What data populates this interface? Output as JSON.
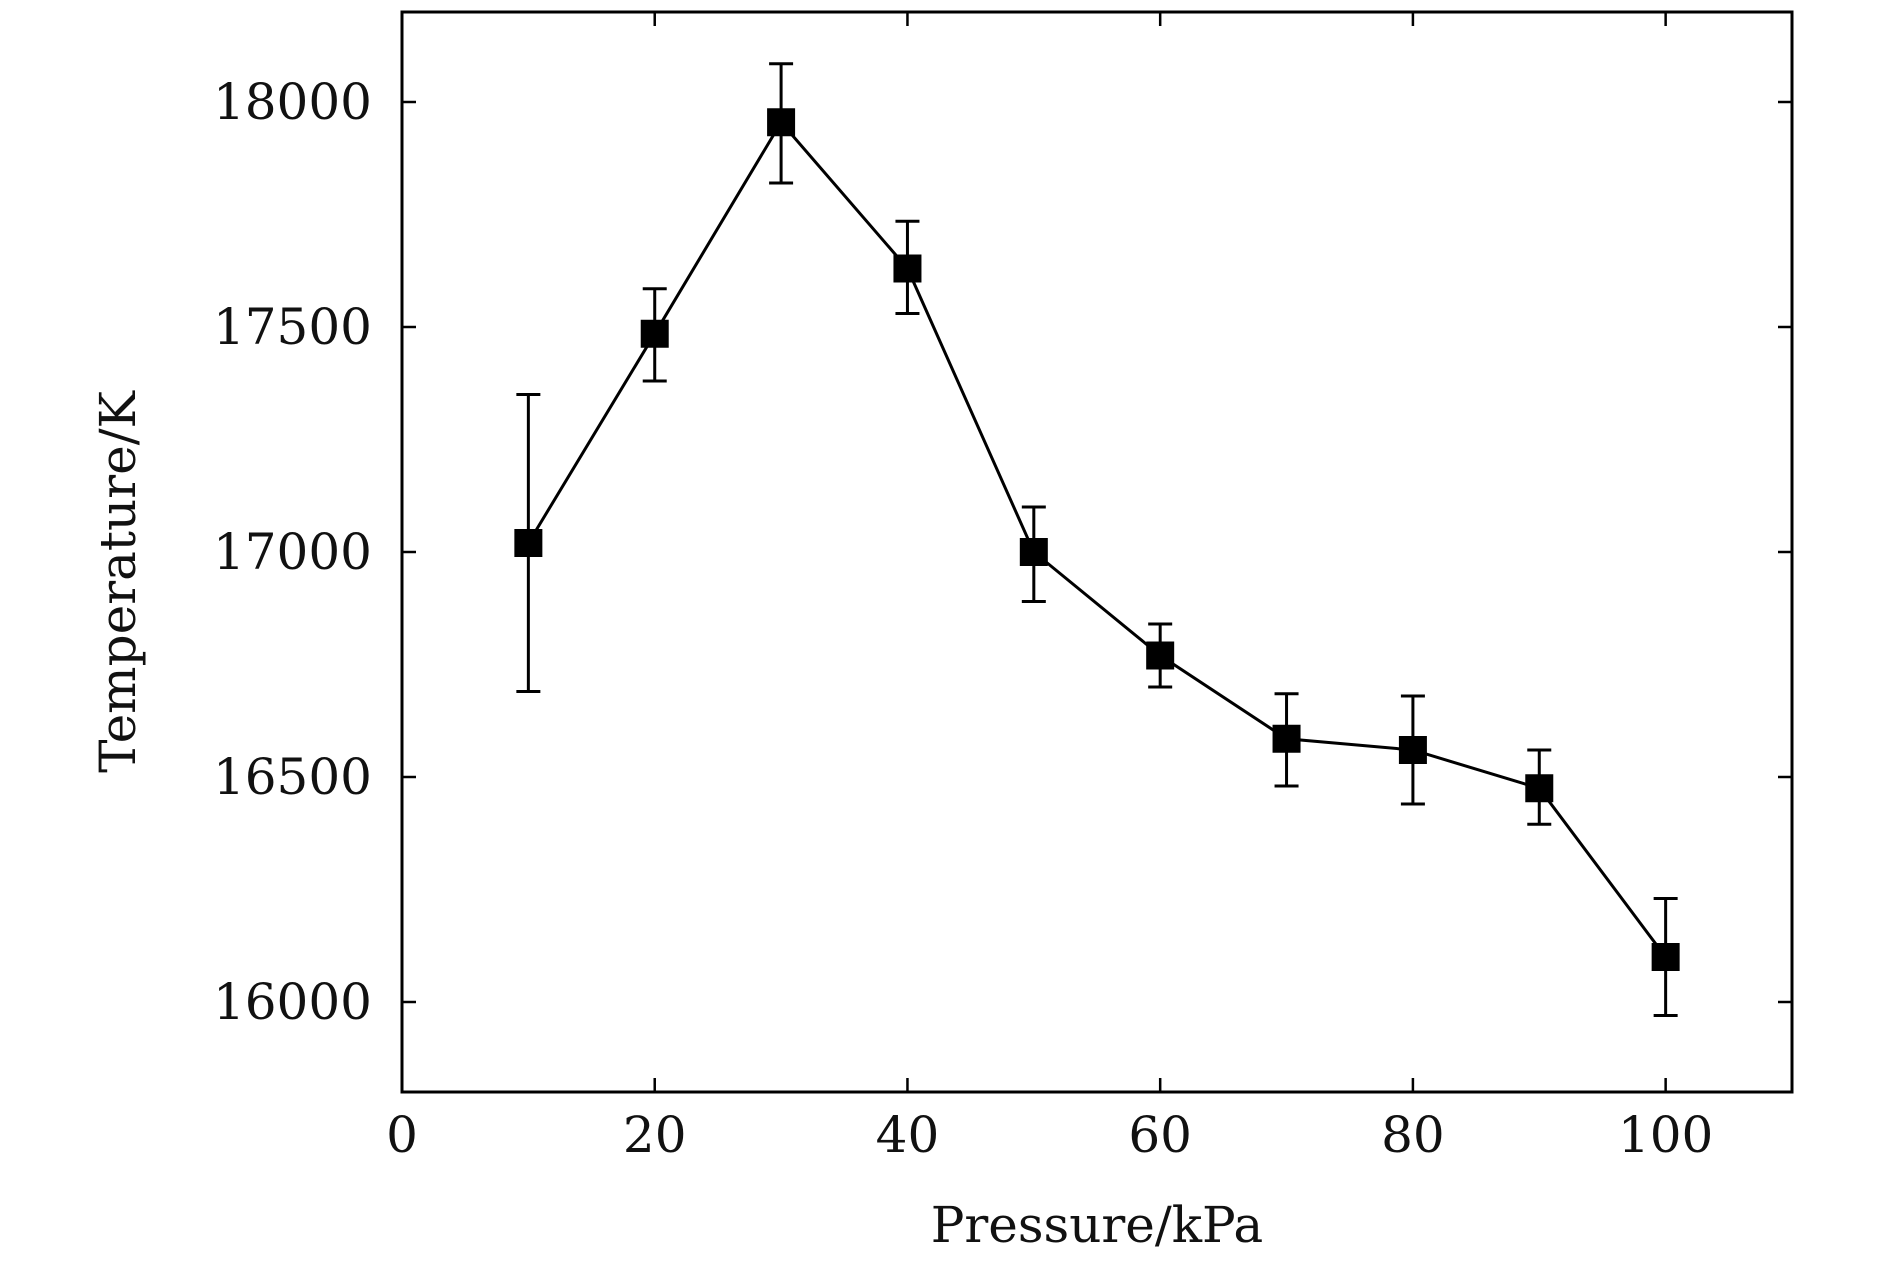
{
  "chart_data": {
    "type": "line",
    "title": "",
    "xlabel": "Pressure/kPa",
    "ylabel": "Temperature/K",
    "xlim": [
      0,
      110
    ],
    "ylim": [
      15800,
      18200
    ],
    "xticks": [
      0,
      20,
      40,
      60,
      80,
      100
    ],
    "yticks": [
      16000,
      16500,
      17000,
      17500,
      18000
    ],
    "grid": false,
    "legend": "none",
    "series": [
      {
        "marker": "square",
        "color": "#000000",
        "points": [
          {
            "x": 10,
            "y": 17020,
            "err_low": 16690,
            "err_high": 17350
          },
          {
            "x": 20,
            "y": 17485,
            "err_low": 17380,
            "err_high": 17585
          },
          {
            "x": 30,
            "y": 17955,
            "err_low": 17820,
            "err_high": 18085
          },
          {
            "x": 40,
            "y": 17630,
            "err_low": 17530,
            "err_high": 17735
          },
          {
            "x": 50,
            "y": 17000,
            "err_low": 16890,
            "err_high": 17100
          },
          {
            "x": 60,
            "y": 16770,
            "err_low": 16700,
            "err_high": 16840
          },
          {
            "x": 70,
            "y": 16585,
            "err_low": 16480,
            "err_high": 16685
          },
          {
            "x": 80,
            "y": 16560,
            "err_low": 16440,
            "err_high": 16680
          },
          {
            "x": 90,
            "y": 16475,
            "err_low": 16395,
            "err_high": 16560
          },
          {
            "x": 100,
            "y": 16100,
            "err_low": 15970,
            "err_high": 16230
          }
        ]
      }
    ]
  }
}
